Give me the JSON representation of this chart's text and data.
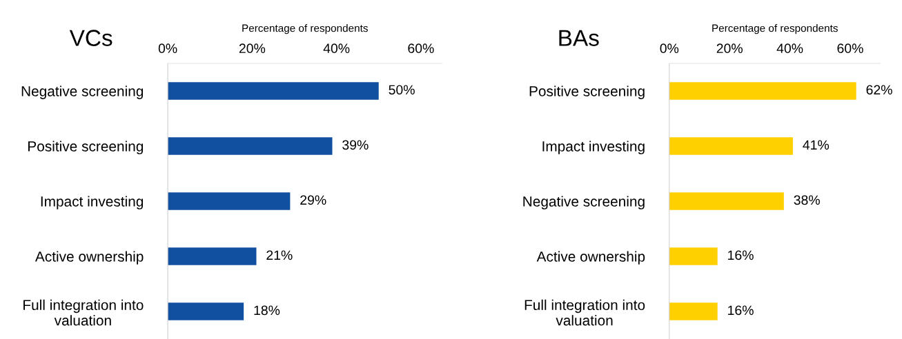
{
  "chart_data": [
    {
      "type": "bar",
      "orientation": "horizontal",
      "title": "VCs",
      "xlabel": "Percentage of respondents",
      "categories": [
        "Negative screening",
        "Positive screening",
        "Impact investing",
        "Active ownership",
        "Full integration into valuation"
      ],
      "values": [
        50,
        39,
        29,
        21,
        18
      ],
      "color": "#1150a0",
      "value_labels": [
        "50%",
        "39%",
        "29%",
        "21%",
        "18%"
      ],
      "xlim": [
        0,
        65
      ],
      "xticks": [
        {
          "value": 0,
          "label": "0%"
        },
        {
          "value": 20,
          "label": "20%"
        },
        {
          "value": 40,
          "label": "40%"
        },
        {
          "value": 60,
          "label": "60%"
        }
      ],
      "grid": false,
      "legend": false
    },
    {
      "type": "bar",
      "orientation": "horizontal",
      "title": "BAs",
      "xlabel": "Percentage of respondents",
      "categories": [
        "Positive screening",
        "Impact investing",
        "Negative screening",
        "Active ownership",
        "Full integration into valuation"
      ],
      "values": [
        62,
        41,
        38,
        16,
        16
      ],
      "color": "#ffd000",
      "value_labels": [
        "62%",
        "41%",
        "38%",
        "16%",
        "16%"
      ],
      "xlim": [
        0,
        70
      ],
      "xticks": [
        {
          "value": 0,
          "label": "0%"
        },
        {
          "value": 20,
          "label": "20%"
        },
        {
          "value": 40,
          "label": "40%"
        },
        {
          "value": 60,
          "label": "60%"
        }
      ],
      "grid": false,
      "legend": false
    }
  ]
}
